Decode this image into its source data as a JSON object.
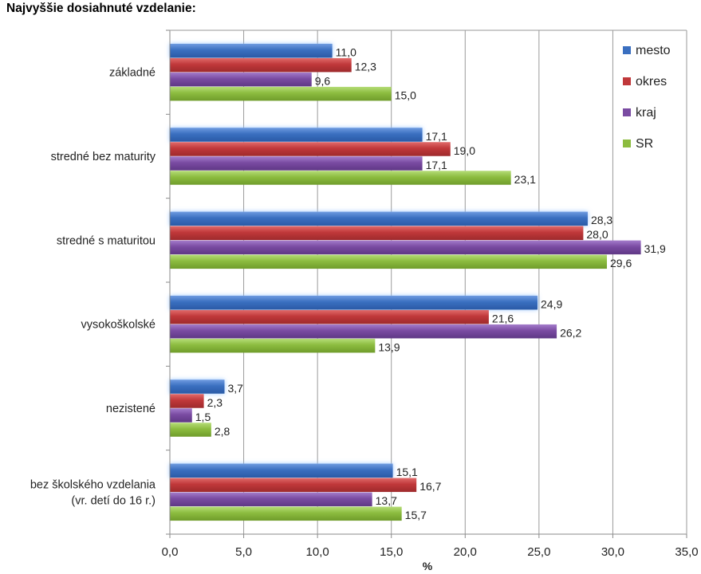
{
  "chart_data": {
    "type": "bar",
    "orientation": "horizontal",
    "title": "Najvyššie dosiahnuté vzdelanie:",
    "xlabel": "%",
    "ylabel": "",
    "xlim": [
      0,
      35
    ],
    "xticks": [
      "0,0",
      "5,0",
      "10,0",
      "15,0",
      "20,0",
      "25,0",
      "30,0",
      "35,0"
    ],
    "grid": true,
    "legend_position": "top-right",
    "categories": [
      [
        "základné"
      ],
      [
        "stredné bez maturity"
      ],
      [
        "stredné s maturitou"
      ],
      [
        "vysokoškolské"
      ],
      [
        "nezistené"
      ],
      [
        "bez školského vzdelania",
        "(vr. detí do 16 r.)"
      ]
    ],
    "series": [
      {
        "name": "mesto",
        "color": "#3a6fc0",
        "values": [
          11.0,
          17.1,
          28.3,
          24.9,
          3.7,
          15.1
        ],
        "labels": [
          "11,0",
          "17,1",
          "28,3",
          "24,9",
          "3,7",
          "15,1"
        ]
      },
      {
        "name": "okres",
        "color": "#c0383a",
        "values": [
          12.3,
          19.0,
          28.0,
          21.6,
          2.3,
          16.7
        ],
        "labels": [
          "12,3",
          "19,0",
          "28,0",
          "21,6",
          "2,3",
          "16,7"
        ]
      },
      {
        "name": "kraj",
        "color": "#7a4ba2",
        "values": [
          9.6,
          17.1,
          31.9,
          26.2,
          1.5,
          13.7
        ],
        "labels": [
          "9,6",
          "17,1",
          "31,9",
          "26,2",
          "1,5",
          "13,7"
        ]
      },
      {
        "name": "SR",
        "color": "#8cbc3f",
        "values": [
          15.0,
          23.1,
          29.6,
          13.9,
          2.8,
          15.7
        ],
        "labels": [
          "15,0",
          "23,1",
          "29,6",
          "13,9",
          "2,8",
          "15,7"
        ]
      }
    ]
  }
}
